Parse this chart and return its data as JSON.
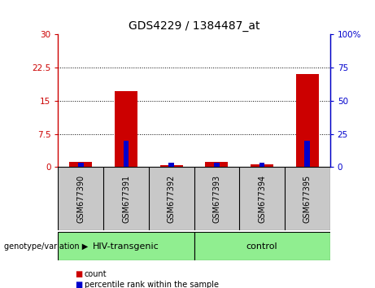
{
  "title": "GDS4229 / 1384487_at",
  "samples": [
    "GSM677390",
    "GSM677391",
    "GSM677392",
    "GSM677393",
    "GSM677394",
    "GSM677395"
  ],
  "count_values": [
    1.1,
    17.2,
    0.35,
    1.25,
    0.7,
    21.0
  ],
  "percentile_values": [
    3.0,
    20.0,
    3.0,
    3.0,
    3.0,
    20.0
  ],
  "left_ylim": [
    0,
    30
  ],
  "right_ylim": [
    0,
    100
  ],
  "left_yticks": [
    0,
    7.5,
    15,
    22.5,
    30
  ],
  "right_yticks": [
    0,
    25,
    50,
    75,
    100
  ],
  "left_yticklabels": [
    "0",
    "7.5",
    "15",
    "22.5",
    "30"
  ],
  "right_yticklabels": [
    "0",
    "25",
    "50",
    "75",
    "100%"
  ],
  "groups": [
    {
      "label": "HIV-transgenic",
      "start": 0,
      "end": 3,
      "color": "#90EE90"
    },
    {
      "label": "control",
      "start": 3,
      "end": 6,
      "color": "#90EE90"
    }
  ],
  "group_label_prefix": "genotype/variation",
  "count_color": "#CC0000",
  "percentile_color": "#0000CC",
  "box_background": "#C8C8C8",
  "legend_count": "count",
  "legend_percentile": "percentile rank within the sample"
}
